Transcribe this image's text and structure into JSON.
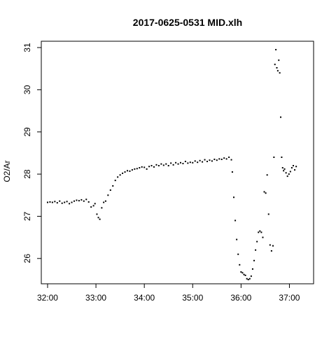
{
  "chart_data": {
    "type": "scatter",
    "title": "2017-0625-0531 MID.xlh",
    "xlabel": "",
    "ylabel": "O2/Ar",
    "x_unit": "minutes",
    "xlim": [
      31.87,
      37.5
    ],
    "ylim": [
      25.4,
      31.15
    ],
    "x_ticks": [
      32,
      33,
      34,
      35,
      36,
      37
    ],
    "x_tick_labels": [
      "32:00",
      "33:00",
      "34:00",
      "35:00",
      "36:00",
      "37:00"
    ],
    "y_ticks": [
      26,
      27,
      28,
      29,
      30,
      31
    ],
    "y_tick_labels": [
      "26",
      "27",
      "28",
      "29",
      "30",
      "31"
    ],
    "grid": false,
    "marker_color": "#000000",
    "series": [
      {
        "x": [
          32.0,
          32.05,
          32.1,
          32.15,
          32.2,
          32.25,
          32.3,
          32.35,
          32.4,
          32.45,
          32.5,
          32.55,
          32.6,
          32.65,
          32.7,
          32.75,
          32.8,
          32.85,
          32.9,
          32.95,
          32.98,
          33.02,
          33.05,
          33.08,
          33.12,
          33.16,
          33.2,
          33.25,
          33.3,
          33.35,
          33.4,
          33.45,
          33.5,
          33.55,
          33.6,
          33.65,
          33.7,
          33.75,
          33.8,
          33.85,
          33.9,
          33.95,
          34.0,
          34.05,
          34.1,
          34.15,
          34.2,
          34.25,
          34.3,
          34.35,
          34.4,
          34.45,
          34.5,
          34.55,
          34.6,
          34.65,
          34.7,
          34.75,
          34.8,
          34.85,
          34.9,
          34.95,
          35.0,
          35.05,
          35.1,
          35.15,
          35.2,
          35.25,
          35.3,
          35.35,
          35.4,
          35.45,
          35.5,
          35.55,
          35.6,
          35.65,
          35.7,
          35.75,
          35.8,
          35.82,
          35.85,
          35.88,
          35.91,
          35.94,
          35.97,
          36.0,
          36.03,
          36.06,
          36.09,
          36.12,
          36.15,
          36.18,
          36.21,
          36.24,
          36.27,
          36.3,
          36.33,
          36.36,
          36.39,
          36.42,
          36.45,
          36.48,
          36.51,
          36.54,
          36.57,
          36.6,
          36.63,
          36.66,
          36.68,
          36.7,
          36.72,
          36.74,
          36.76,
          36.78,
          36.8,
          36.82,
          36.84,
          36.86,
          36.88,
          36.9,
          36.93,
          36.96,
          36.99,
          37.02,
          37.05,
          37.08,
          37.11,
          37.14
        ],
        "y": [
          27.33,
          27.34,
          27.33,
          27.35,
          27.32,
          27.36,
          27.31,
          27.33,
          27.35,
          27.3,
          27.33,
          27.36,
          27.38,
          27.37,
          27.39,
          27.36,
          27.4,
          27.34,
          27.22,
          27.25,
          27.3,
          27.05,
          26.97,
          26.93,
          27.2,
          27.33,
          27.36,
          27.5,
          27.62,
          27.72,
          27.85,
          27.93,
          27.98,
          28.02,
          28.05,
          28.08,
          28.07,
          28.1,
          28.12,
          28.13,
          28.15,
          28.17,
          28.16,
          28.12,
          28.18,
          28.2,
          28.17,
          28.22,
          28.2,
          28.24,
          28.21,
          28.24,
          28.2,
          28.26,
          28.22,
          28.27,
          28.24,
          28.27,
          28.25,
          28.3,
          28.26,
          28.28,
          28.27,
          28.31,
          28.28,
          28.32,
          28.29,
          28.34,
          28.3,
          28.33,
          28.31,
          28.35,
          28.33,
          28.36,
          28.35,
          28.38,
          28.36,
          28.4,
          28.34,
          28.05,
          27.45,
          26.9,
          26.45,
          26.1,
          25.85,
          25.68,
          25.66,
          25.62,
          25.6,
          25.52,
          25.5,
          25.52,
          25.58,
          25.75,
          25.95,
          26.2,
          26.4,
          26.62,
          26.65,
          26.62,
          26.5,
          27.58,
          27.55,
          27.98,
          27.05,
          26.32,
          26.18,
          26.3,
          28.4,
          30.6,
          30.95,
          30.52,
          30.45,
          30.7,
          30.4,
          29.35,
          28.4,
          28.15,
          28.08,
          28.12,
          28.03,
          27.95,
          28.0,
          28.06,
          28.15,
          28.2,
          28.1,
          28.18
        ]
      }
    ]
  }
}
